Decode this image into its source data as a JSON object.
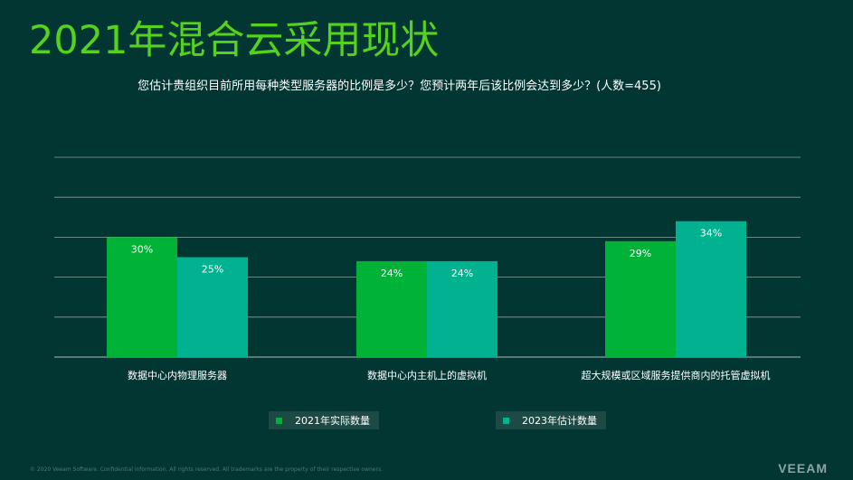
{
  "slide": {
    "title": "2021年混合云采用现状",
    "subtitle": "您估计贵组织目前所用每种类型服务器的比例是多少？您预计两年后该比例会达到多少？(人数=455)",
    "footer": "© 2020 Veeam Software. Confidential information. All rights reserved. All trademarks are the property of their respective owners.",
    "brand": "VEEAM"
  },
  "colors": {
    "background": "#023633",
    "title": "#54d21d",
    "series_2021": "#00b336",
    "series_2023": "#00b28f",
    "gridline": "#8aa09d"
  },
  "chart_data": {
    "type": "bar",
    "categories": [
      "数据中心内物理服务器",
      "数据中心内主机上的虚拟机",
      "超大规模或区域服务提供商内的托管虚拟机"
    ],
    "series": [
      {
        "name": "2021年实际数量",
        "values": [
          30,
          24,
          29
        ],
        "labels": [
          "30%",
          "24%",
          "29%"
        ]
      },
      {
        "name": "2023年估计数量",
        "values": [
          25,
          24,
          34
        ],
        "labels": [
          "25%",
          "24%",
          "34%"
        ]
      }
    ],
    "unit": "%",
    "ylim": [
      0,
      50
    ],
    "gridlines": true,
    "legend_position": "bottom"
  }
}
